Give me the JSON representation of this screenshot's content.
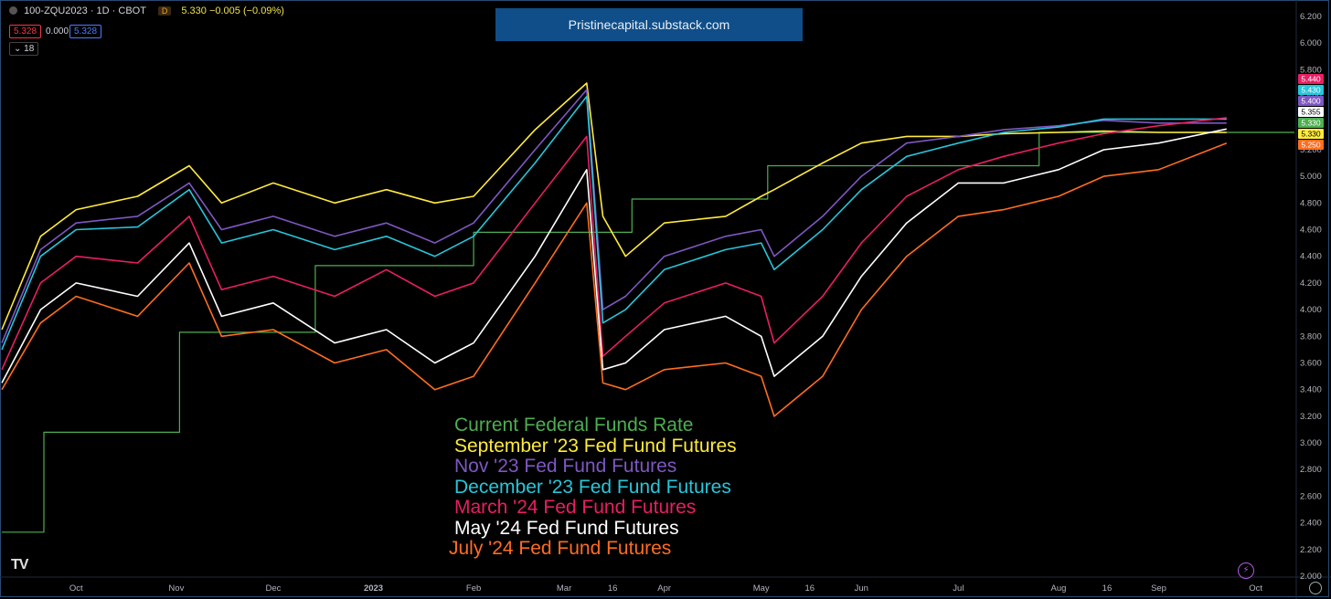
{
  "header": {
    "symbol": "100-ZQU2023 · 1D · CBOT",
    "badge": "D",
    "values": "5.330 −0.005 (−0.09%)",
    "bid": "5.328",
    "spread": "0.000",
    "ask": "5.328",
    "indicator_count": "18"
  },
  "banner": "Pristinecapital.substack.com",
  "colors": {
    "background": "#000000",
    "fed_funds": "#4caf50",
    "sep23": "#ffeb3b",
    "nov23": "#7e57c2",
    "dec23": "#26c6da",
    "mar24": "#e91e63",
    "may24": "#ffffff",
    "jul24": "#ff6d1f"
  },
  "chart_data": {
    "type": "line",
    "ylim": [
      2.0,
      6.2
    ],
    "y_ticks": [
      "6.200",
      "6.000",
      "5.800",
      "5.600",
      "5.400",
      "5.200",
      "5.000",
      "4.800",
      "4.600",
      "4.400",
      "4.200",
      "4.000",
      "3.800",
      "3.600",
      "3.400",
      "3.200",
      "3.000",
      "2.800",
      "2.600",
      "2.400",
      "2.200",
      "2.000"
    ],
    "x_ticks": [
      "Oct",
      "Nov",
      "Dec",
      "2023",
      "Feb",
      "Mar",
      "16",
      "Apr",
      "May",
      "16",
      "Jun",
      "Jul",
      "Aug",
      "16",
      "Sep",
      "Oct"
    ],
    "x_tick_dates": [
      "2022-10-01",
      "2022-11-01",
      "2022-12-01",
      "2023-01-01",
      "2023-02-01",
      "2023-03-01",
      "2023-03-16",
      "2023-04-01",
      "2023-05-01",
      "2023-05-16",
      "2023-06-01",
      "2023-07-01",
      "2023-08-01",
      "2023-08-16",
      "2023-09-01",
      "2023-10-01"
    ],
    "x_range": [
      "2022-09-08",
      "2023-10-13"
    ],
    "grid": false,
    "legend_position": "bottom-center",
    "last_value_labels": [
      {
        "text": "5.440",
        "color": "#e91e63"
      },
      {
        "text": "5.430",
        "color": "#26c6da"
      },
      {
        "text": "5.400",
        "color": "#7e57c2"
      },
      {
        "text": "5.355",
        "color": "#ffffff"
      },
      {
        "text": "5.330",
        "color": "#4caf50"
      },
      {
        "text": "5.330",
        "color": "#ffeb3b"
      },
      {
        "text": "5.250",
        "color": "#ff6d1f"
      }
    ],
    "series": [
      {
        "name": "Current Federal Funds Rate",
        "key": "fed_funds",
        "step": true,
        "x": [
          "2022-09-08",
          "2022-09-21",
          "2022-11-02",
          "2022-12-14",
          "2023-02-01",
          "2023-03-22",
          "2023-05-03",
          "2023-06-14",
          "2023-07-26",
          "2023-09-22"
        ],
        "y": [
          2.33,
          3.08,
          3.83,
          4.33,
          4.58,
          4.83,
          5.08,
          5.08,
          5.33,
          5.33
        ]
      },
      {
        "name": "September '23 Fed Fund Futures",
        "key": "sep23",
        "x": [
          "2022-09-08",
          "2022-09-20",
          "2022-10-01",
          "2022-10-20",
          "2022-11-05",
          "2022-11-15",
          "2022-12-01",
          "2022-12-20",
          "2023-01-05",
          "2023-01-20",
          "2023-02-01",
          "2023-02-20",
          "2023-03-08",
          "2023-03-13",
          "2023-03-20",
          "2023-04-01",
          "2023-04-20",
          "2023-05-01",
          "2023-05-05",
          "2023-05-20",
          "2023-06-01",
          "2023-06-15",
          "2023-07-01",
          "2023-07-15",
          "2023-08-01",
          "2023-08-15",
          "2023-09-01",
          "2023-09-22"
        ],
        "y": [
          3.85,
          4.55,
          4.75,
          4.85,
          5.08,
          4.8,
          4.95,
          4.8,
          4.9,
          4.8,
          4.85,
          5.35,
          5.7,
          4.7,
          4.4,
          4.65,
          4.7,
          4.85,
          4.9,
          5.1,
          5.25,
          5.3,
          5.3,
          5.32,
          5.33,
          5.34,
          5.33,
          5.33
        ]
      },
      {
        "name": "Nov '23 Fed Fund Futures",
        "key": "nov23",
        "x": [
          "2022-09-08",
          "2022-09-20",
          "2022-10-01",
          "2022-10-20",
          "2022-11-05",
          "2022-11-15",
          "2022-12-01",
          "2022-12-20",
          "2023-01-05",
          "2023-01-20",
          "2023-02-01",
          "2023-02-20",
          "2023-03-08",
          "2023-03-13",
          "2023-03-20",
          "2023-04-01",
          "2023-04-20",
          "2023-05-01",
          "2023-05-05",
          "2023-05-20",
          "2023-06-01",
          "2023-06-15",
          "2023-07-01",
          "2023-07-15",
          "2023-08-01",
          "2023-08-15",
          "2023-09-01",
          "2023-09-22"
        ],
        "y": [
          3.75,
          4.45,
          4.65,
          4.7,
          4.95,
          4.6,
          4.7,
          4.55,
          4.65,
          4.5,
          4.65,
          5.2,
          5.65,
          4.0,
          4.1,
          4.4,
          4.55,
          4.6,
          4.4,
          4.7,
          5.0,
          5.25,
          5.3,
          5.35,
          5.38,
          5.42,
          5.4,
          5.4
        ]
      },
      {
        "name": "December '23 Fed Fund Futures",
        "key": "dec23",
        "x": [
          "2022-09-08",
          "2022-09-20",
          "2022-10-01",
          "2022-10-20",
          "2022-11-05",
          "2022-11-15",
          "2022-12-01",
          "2022-12-20",
          "2023-01-05",
          "2023-01-20",
          "2023-02-01",
          "2023-02-20",
          "2023-03-08",
          "2023-03-13",
          "2023-03-20",
          "2023-04-01",
          "2023-04-20",
          "2023-05-01",
          "2023-05-05",
          "2023-05-20",
          "2023-06-01",
          "2023-06-15",
          "2023-07-01",
          "2023-07-15",
          "2023-08-01",
          "2023-08-15",
          "2023-09-01",
          "2023-09-22"
        ],
        "y": [
          3.7,
          4.4,
          4.6,
          4.62,
          4.9,
          4.5,
          4.6,
          4.45,
          4.55,
          4.4,
          4.55,
          5.1,
          5.6,
          3.9,
          4.0,
          4.3,
          4.45,
          4.5,
          4.3,
          4.6,
          4.9,
          5.15,
          5.25,
          5.33,
          5.37,
          5.43,
          5.43,
          5.43
        ]
      },
      {
        "name": "March '24 Fed Fund Futures",
        "key": "mar24",
        "x": [
          "2022-09-08",
          "2022-09-20",
          "2022-10-01",
          "2022-10-20",
          "2022-11-05",
          "2022-11-15",
          "2022-12-01",
          "2022-12-20",
          "2023-01-05",
          "2023-01-20",
          "2023-02-01",
          "2023-02-20",
          "2023-03-08",
          "2023-03-13",
          "2023-03-20",
          "2023-04-01",
          "2023-04-20",
          "2023-05-01",
          "2023-05-05",
          "2023-05-20",
          "2023-06-01",
          "2023-06-15",
          "2023-07-01",
          "2023-07-15",
          "2023-08-01",
          "2023-08-15",
          "2023-09-01",
          "2023-09-22"
        ],
        "y": [
          3.55,
          4.2,
          4.4,
          4.35,
          4.7,
          4.15,
          4.25,
          4.1,
          4.3,
          4.1,
          4.2,
          4.8,
          5.3,
          3.65,
          3.8,
          4.05,
          4.2,
          4.1,
          3.75,
          4.1,
          4.5,
          4.85,
          5.05,
          5.15,
          5.25,
          5.32,
          5.38,
          5.44
        ]
      },
      {
        "name": "May '24 Fed Fund Futures",
        "key": "may24",
        "x": [
          "2022-09-08",
          "2022-09-20",
          "2022-10-01",
          "2022-10-20",
          "2022-11-05",
          "2022-11-15",
          "2022-12-01",
          "2022-12-20",
          "2023-01-05",
          "2023-01-20",
          "2023-02-01",
          "2023-02-20",
          "2023-03-08",
          "2023-03-13",
          "2023-03-20",
          "2023-04-01",
          "2023-04-20",
          "2023-05-01",
          "2023-05-05",
          "2023-05-20",
          "2023-06-01",
          "2023-06-15",
          "2023-07-01",
          "2023-07-15",
          "2023-08-01",
          "2023-08-15",
          "2023-09-01",
          "2023-09-22"
        ],
        "y": [
          3.45,
          4.0,
          4.2,
          4.1,
          4.5,
          3.95,
          4.05,
          3.75,
          3.85,
          3.6,
          3.75,
          4.4,
          5.05,
          3.55,
          3.6,
          3.85,
          3.95,
          3.8,
          3.5,
          3.8,
          4.25,
          4.65,
          4.95,
          4.95,
          5.05,
          5.2,
          5.25,
          5.355
        ]
      },
      {
        "name": "July '24 Fed Fund Futures",
        "key": "jul24",
        "x": [
          "2022-09-08",
          "2022-09-20",
          "2022-10-01",
          "2022-10-20",
          "2022-11-05",
          "2022-11-15",
          "2022-12-01",
          "2022-12-20",
          "2023-01-05",
          "2023-01-20",
          "2023-02-01",
          "2023-02-20",
          "2023-03-08",
          "2023-03-13",
          "2023-03-20",
          "2023-04-01",
          "2023-04-20",
          "2023-05-01",
          "2023-05-05",
          "2023-05-20",
          "2023-06-01",
          "2023-06-15",
          "2023-07-01",
          "2023-07-15",
          "2023-08-01",
          "2023-08-15",
          "2023-09-01",
          "2023-09-22"
        ],
        "y": [
          3.4,
          3.9,
          4.1,
          3.95,
          4.35,
          3.8,
          3.85,
          3.6,
          3.7,
          3.4,
          3.5,
          4.2,
          4.8,
          3.45,
          3.4,
          3.55,
          3.6,
          3.5,
          3.2,
          3.5,
          4.0,
          4.4,
          4.7,
          4.75,
          4.85,
          5.0,
          5.05,
          5.25
        ]
      }
    ]
  },
  "legend": [
    {
      "text": "Current Federal Funds Rate",
      "key": "fed_funds"
    },
    {
      "text": "September '23 Fed Fund Futures",
      "key": "sep23"
    },
    {
      "text": "Nov '23 Fed Fund Futures",
      "key": "nov23"
    },
    {
      "text": "December '23 Fed Fund Futures",
      "key": "dec23"
    },
    {
      "text": "March '24 Fed Fund Futures",
      "key": "mar24"
    },
    {
      "text": "May '24 Fed Fund Futures",
      "key": "may24"
    },
    {
      "text": "July '24 Fed Fund Futures",
      "key": "jul24"
    }
  ],
  "watermark": "TV",
  "icons": {
    "bolt": "lightning-icon",
    "settings": "gear-icon"
  }
}
